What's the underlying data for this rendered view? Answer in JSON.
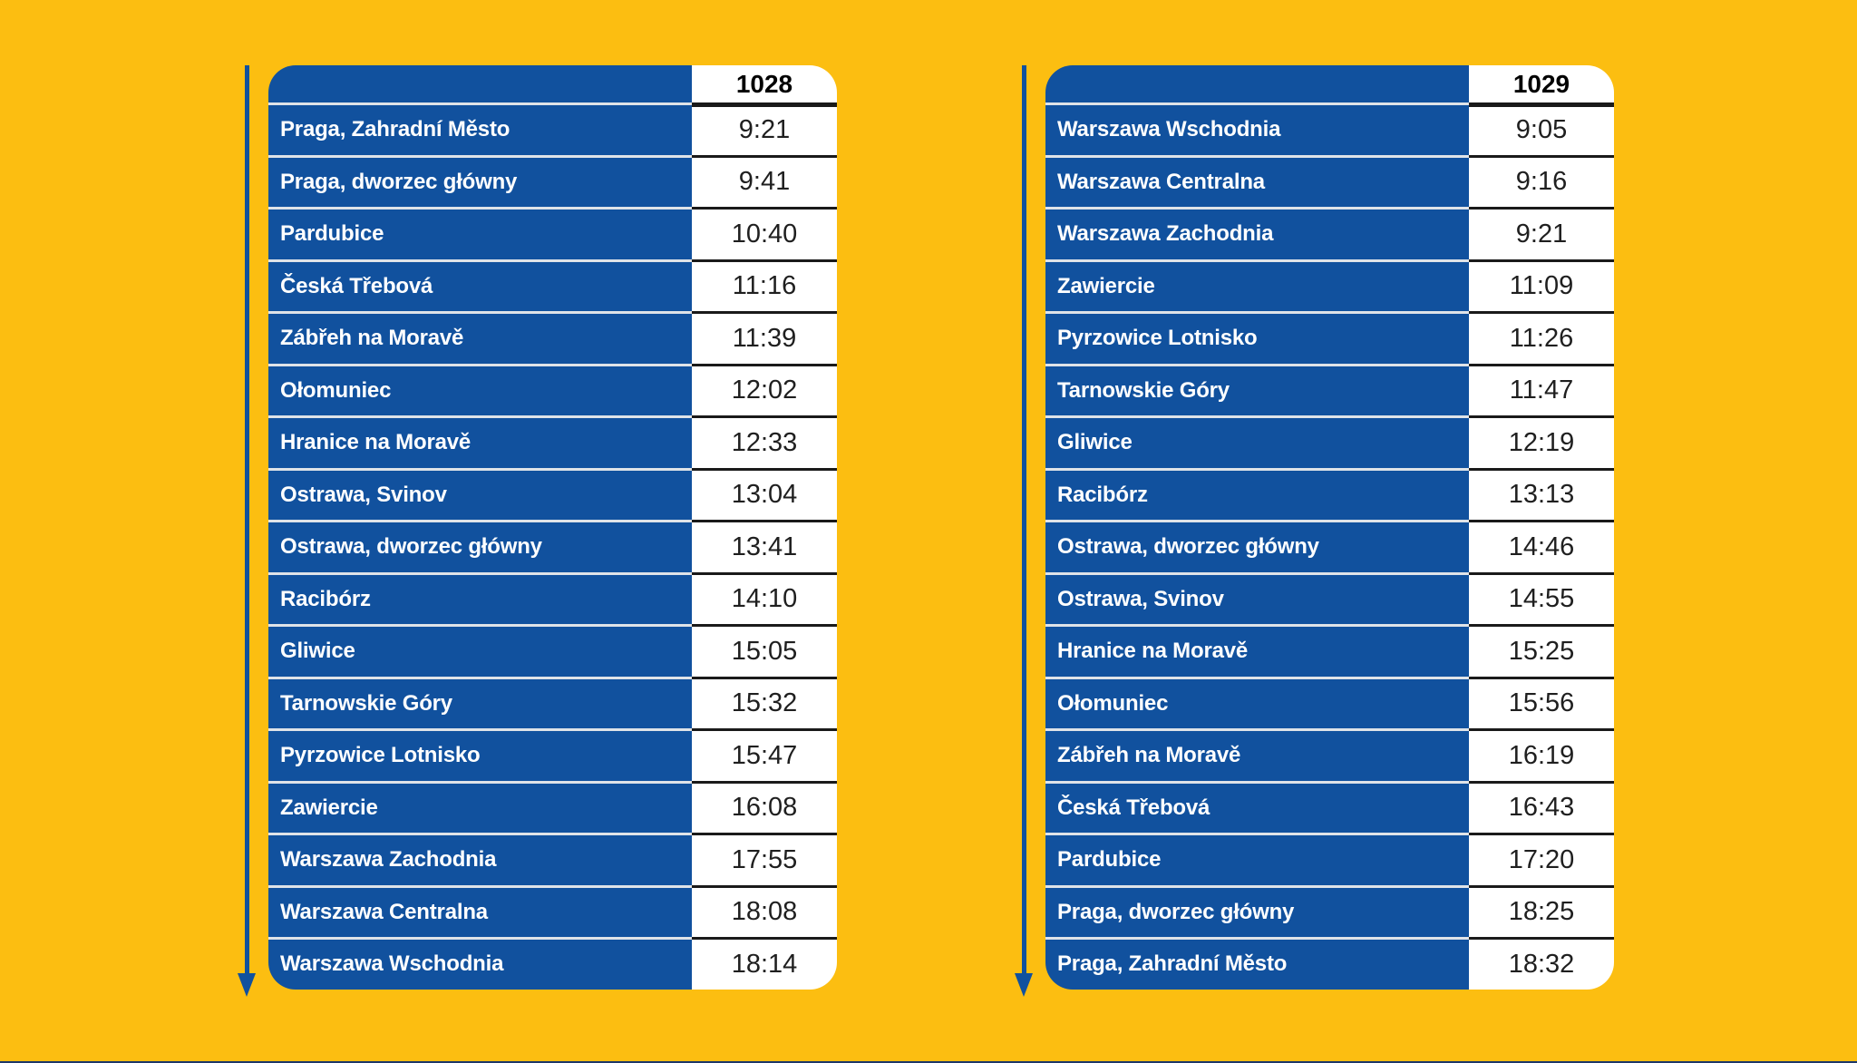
{
  "colors": {
    "background": "#FCBE11",
    "primary_blue": "#11519E",
    "row_gap_line": "#DFE3E8",
    "time_rule_line": "#1A1A1A",
    "time_text": "#1F1F1F",
    "station_text": "#FFFFFF"
  },
  "tables": [
    {
      "train_number": "1028",
      "rows": [
        {
          "station": "Praga, Zahradní Město",
          "time": "9:21"
        },
        {
          "station": "Praga, dworzec główny",
          "time": "9:41"
        },
        {
          "station": "Pardubice",
          "time": "10:40"
        },
        {
          "station": "Česká Třebová",
          "time": "11:16"
        },
        {
          "station": "Zábřeh na Moravě",
          "time": "11:39"
        },
        {
          "station": "Ołomuniec",
          "time": "12:02"
        },
        {
          "station": "Hranice na Moravě",
          "time": "12:33"
        },
        {
          "station": "Ostrawa, Svinov",
          "time": "13:04"
        },
        {
          "station": "Ostrawa, dworzec główny",
          "time": "13:41"
        },
        {
          "station": "Racibórz",
          "time": "14:10"
        },
        {
          "station": "Gliwice",
          "time": "15:05"
        },
        {
          "station": "Tarnowskie Góry",
          "time": "15:32"
        },
        {
          "station": "Pyrzowice Lotnisko",
          "time": "15:47"
        },
        {
          "station": "Zawiercie",
          "time": "16:08"
        },
        {
          "station": "Warszawa Zachodnia",
          "time": "17:55"
        },
        {
          "station": "Warszawa Centralna",
          "time": "18:08"
        },
        {
          "station": "Warszawa Wschodnia",
          "time": "18:14"
        }
      ]
    },
    {
      "train_number": "1029",
      "rows": [
        {
          "station": "Warszawa Wschodnia",
          "time": "9:05"
        },
        {
          "station": "Warszawa Centralna",
          "time": "9:16"
        },
        {
          "station": "Warszawa Zachodnia",
          "time": "9:21"
        },
        {
          "station": "Zawiercie",
          "time": "11:09"
        },
        {
          "station": "Pyrzowice Lotnisko",
          "time": "11:26"
        },
        {
          "station": "Tarnowskie Góry",
          "time": "11:47"
        },
        {
          "station": "Gliwice",
          "time": "12:19"
        },
        {
          "station": "Racibórz",
          "time": "13:13"
        },
        {
          "station": "Ostrawa, dworzec główny",
          "time": "14:46"
        },
        {
          "station": "Ostrawa, Svinov",
          "time": "14:55"
        },
        {
          "station": "Hranice na Moravě",
          "time": "15:25"
        },
        {
          "station": "Ołomuniec",
          "time": "15:56"
        },
        {
          "station": "Zábřeh na Moravě",
          "time": "16:19"
        },
        {
          "station": "Česká Třebová",
          "time": "16:43"
        },
        {
          "station": "Pardubice",
          "time": "17:20"
        },
        {
          "station": "Praga, dworzec główny",
          "time": "18:25"
        },
        {
          "station": "Praga, Zahradní Město",
          "time": "18:32"
        }
      ]
    }
  ]
}
